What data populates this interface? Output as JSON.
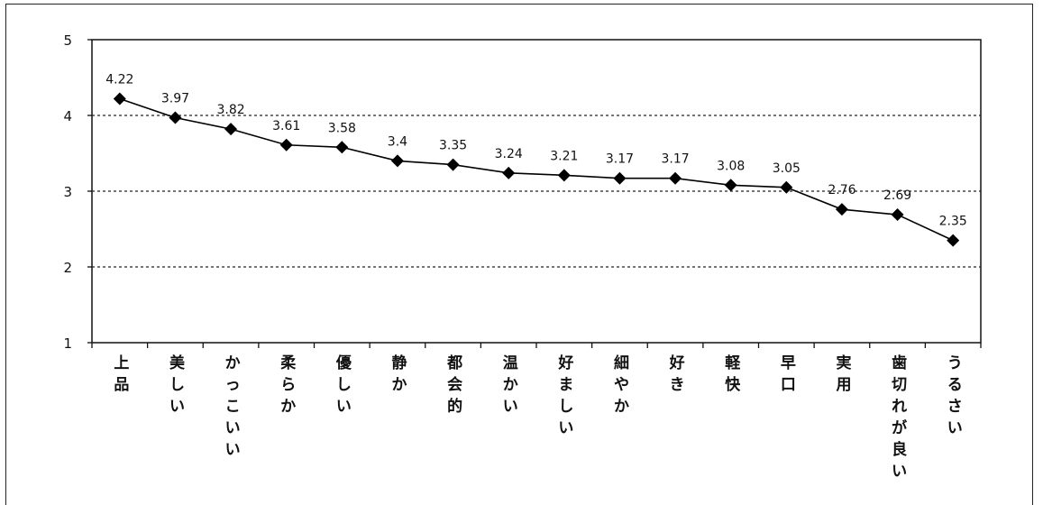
{
  "chart_data": {
    "type": "line",
    "title": "",
    "xlabel": "",
    "ylabel": "",
    "ylim": [
      1,
      5
    ],
    "yticks": [
      1,
      2,
      3,
      4,
      5
    ],
    "grid": "horizontal dashed",
    "categories": [
      "上品",
      "美しい",
      "かっこいい",
      "柔らか",
      "優しい",
      "静か",
      "都会的",
      "温かい",
      "好ましい",
      "細やか",
      "好き",
      "軽快",
      "早口",
      "実用",
      "歯切れが良い",
      "うるさい"
    ],
    "series": [
      {
        "marker": "diamond",
        "color": "#000000",
        "values": [
          4.22,
          3.97,
          3.82,
          3.61,
          3.58,
          3.4,
          3.35,
          3.24,
          3.21,
          3.17,
          3.17,
          3.08,
          3.05,
          2.76,
          2.69,
          2.35
        ],
        "labels": [
          "4.22",
          "3.97",
          "3.82",
          "3.61",
          "3.58",
          "3.4",
          "3.35",
          "3.24",
          "3.21",
          "3.17",
          "3.17",
          "3.08",
          "3.05",
          "2.76",
          "2.69",
          "2.35"
        ]
      }
    ]
  }
}
